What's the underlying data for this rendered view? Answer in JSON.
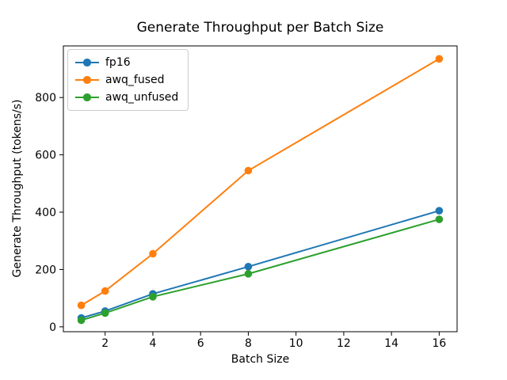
{
  "chart_data": {
    "type": "line",
    "title": "Generate Throughput per Batch Size",
    "xlabel": "Batch Size",
    "ylabel": "Generate Throughput (tokens/s)",
    "x": [
      1,
      2,
      4,
      8,
      16
    ],
    "series": [
      {
        "name": "fp16",
        "color": "#1f77b4",
        "values": [
          31,
          55,
          115,
          210,
          405
        ]
      },
      {
        "name": "awq_fused",
        "color": "#ff7f0e",
        "values": [
          75,
          125,
          255,
          545,
          935
        ]
      },
      {
        "name": "awq_unfused",
        "color": "#2ca02c",
        "values": [
          23,
          48,
          105,
          185,
          375
        ]
      }
    ],
    "x_ticks": [
      2,
      4,
      6,
      8,
      10,
      12,
      14,
      16
    ],
    "y_ticks": [
      0,
      200,
      400,
      600,
      800
    ],
    "xlim": [
      0.25,
      16.75
    ],
    "ylim": [
      -17,
      980
    ],
    "legend_position": "upper left",
    "grid": false,
    "marker": "o",
    "background": "#ffffff"
  }
}
